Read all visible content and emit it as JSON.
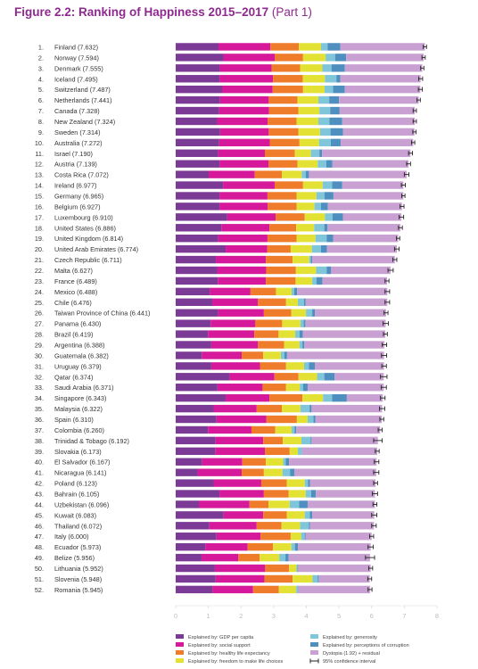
{
  "title": "Figure 2.2: Ranking of Happiness 2015–2017",
  "title_part": "(Part 1)",
  "chart_data": {
    "type": "bar",
    "orientation": "horizontal",
    "stacked": true,
    "xlim": [
      0,
      8
    ],
    "x_ticks": [
      "0",
      "1",
      "2",
      "3",
      "4",
      "5",
      "6",
      "7",
      "8"
    ],
    "grid": false,
    "legend_position": "bottom",
    "categories": [
      "Finland (7.632)",
      "Norway (7.594)",
      "Denmark (7.555)",
      "Iceland (7.495)",
      "Switzerland (7.487)",
      "Netherlands (7.441)",
      "Canada (7.328)",
      "New Zealand (7.324)",
      "Sweden (7.314)",
      "Australia (7.272)",
      "Israel (7.190)",
      "Austria (7.139)",
      "Costa Rica (7.072)",
      "Ireland (6.977)",
      "Germany (6.965)",
      "Belgium (6.927)",
      "Luxembourg (6.910)",
      "United States (6.886)",
      "United Kingdom (6.814)",
      "United Arab Emirates (6.774)",
      "Czech Republic (6.711)",
      "Malta (6.627)",
      "France (6.489)",
      "Mexico (6.488)",
      "Chile (6.476)",
      "Taiwan Province of China (6.441)",
      "Panama (6.430)",
      "Brazil (6.419)",
      "Argentina (6.388)",
      "Guatemala (6.382)",
      "Uruguay (6.379)",
      "Qatar (6.374)",
      "Saudi Arabia (6.371)",
      "Singapore (6.343)",
      "Malaysia (6.322)",
      "Spain (6.310)",
      "Colombia (6.260)",
      "Trinidad & Tobago (6.192)",
      "Slovakia (6.173)",
      "El Salvador (6.167)",
      "Nicaragua (6.141)",
      "Poland (6.123)",
      "Bahrain (6.105)",
      "Uzbekistan (6.096)",
      "Kuwait (6.083)",
      "Thailand (6.072)",
      "Italy (6.000)",
      "Ecuador (5.973)",
      "Belize (5.956)",
      "Lithuania (5.952)",
      "Slovenia (5.948)",
      "Romania (5.945)"
    ],
    "series": [
      {
        "name": "Explained by: GDP per capita",
        "color": "#7b3a96",
        "values": [
          1.31,
          1.46,
          1.35,
          1.34,
          1.42,
          1.36,
          1.33,
          1.27,
          1.36,
          1.33,
          1.3,
          1.34,
          1.01,
          1.45,
          1.34,
          1.34,
          1.58,
          1.4,
          1.3,
          1.53,
          1.23,
          1.27,
          1.29,
          1.04,
          1.12,
          1.3,
          1.07,
          0.99,
          1.09,
          0.8,
          1.09,
          1.65,
          1.28,
          1.53,
          1.16,
          1.25,
          0.99,
          1.22,
          1.21,
          0.81,
          0.67,
          1.16,
          1.34,
          0.71,
          1.47,
          1.03,
          1.25,
          0.91,
          0.79,
          1.2,
          1.22,
          1.13
        ]
      },
      {
        "name": "Explained by: social support",
        "color": "#d6199b",
        "values": [
          1.59,
          1.58,
          1.59,
          1.64,
          1.55,
          1.49,
          1.53,
          1.55,
          1.49,
          1.55,
          1.43,
          1.5,
          1.41,
          1.58,
          1.47,
          1.48,
          1.48,
          1.47,
          1.51,
          1.27,
          1.53,
          1.5,
          1.47,
          1.25,
          1.4,
          1.4,
          1.37,
          1.42,
          1.43,
          1.22,
          1.49,
          1.37,
          1.38,
          1.34,
          1.32,
          1.53,
          1.33,
          1.46,
          1.52,
          1.23,
          1.35,
          1.46,
          1.36,
          1.55,
          1.21,
          1.45,
          1.35,
          1.29,
          1.13,
          1.54,
          1.5,
          1.24
        ]
      },
      {
        "name": "Explained by: healthy life expectancy",
        "color": "#ef7c2a",
        "values": [
          0.87,
          0.86,
          0.87,
          0.91,
          0.93,
          0.88,
          0.9,
          0.88,
          0.91,
          0.91,
          0.92,
          0.89,
          0.83,
          0.87,
          0.89,
          0.88,
          0.89,
          0.82,
          0.89,
          0.72,
          0.82,
          0.91,
          0.91,
          0.78,
          0.86,
          0.84,
          0.82,
          0.74,
          0.8,
          0.66,
          0.8,
          0.74,
          0.72,
          1.01,
          0.77,
          0.93,
          0.73,
          0.6,
          0.76,
          0.72,
          0.68,
          0.78,
          0.76,
          0.58,
          0.72,
          0.76,
          0.92,
          0.78,
          0.65,
          0.73,
          0.86,
          0.79
        ]
      },
      {
        "name": "Explained by: freedom to make life choices",
        "color": "#e3e234",
        "values": [
          0.68,
          0.69,
          0.68,
          0.68,
          0.66,
          0.64,
          0.64,
          0.67,
          0.66,
          0.6,
          0.49,
          0.62,
          0.61,
          0.6,
          0.61,
          0.55,
          0.62,
          0.55,
          0.58,
          0.65,
          0.51,
          0.62,
          0.51,
          0.48,
          0.36,
          0.45,
          0.56,
          0.51,
          0.47,
          0.54,
          0.55,
          0.57,
          0.42,
          0.63,
          0.57,
          0.33,
          0.5,
          0.57,
          0.25,
          0.53,
          0.57,
          0.55,
          0.52,
          0.65,
          0.55,
          0.57,
          0.32,
          0.56,
          0.6,
          0.23,
          0.61,
          0.53
        ]
      },
      {
        "name": "Explained by: generosity",
        "color": "#7fc6db",
        "values": [
          0.2,
          0.29,
          0.28,
          0.35,
          0.26,
          0.33,
          0.33,
          0.34,
          0.32,
          0.36,
          0.26,
          0.26,
          0.12,
          0.29,
          0.25,
          0.2,
          0.23,
          0.31,
          0.34,
          0.28,
          0.05,
          0.32,
          0.13,
          0.08,
          0.19,
          0.19,
          0.1,
          0.13,
          0.09,
          0.11,
          0.15,
          0.22,
          0.1,
          0.28,
          0.28,
          0.18,
          0.09,
          0.28,
          0.12,
          0.08,
          0.23,
          0.1,
          0.17,
          0.29,
          0.16,
          0.27,
          0.11,
          0.11,
          0.19,
          0.03,
          0.16,
          0.05
        ]
      },
      {
        "name": "Explained by: perceptions of corruption",
        "color": "#4f8fc0",
        "values": [
          0.39,
          0.34,
          0.41,
          0.12,
          0.36,
          0.3,
          0.29,
          0.39,
          0.38,
          0.3,
          0.08,
          0.19,
          0.1,
          0.31,
          0.27,
          0.21,
          0.32,
          0.1,
          0.2,
          0.18,
          0.04,
          0.14,
          0.18,
          0.09,
          0.05,
          0.08,
          0.05,
          0.1,
          0.06,
          0.08,
          0.18,
          0.31,
          0.14,
          0.45,
          0.06,
          0.06,
          0.05,
          0.03,
          0.01,
          0.1,
          0.14,
          0.06,
          0.14,
          0.26,
          0.07,
          0.03,
          0.03,
          0.09,
          0.1,
          0.02,
          0.03,
          0.01
        ]
      },
      {
        "name": "Dystopia (1.92) + residual",
        "color": "#c9a0d2",
        "values": [
          2.59,
          2.37,
          2.37,
          2.46,
          2.31,
          2.44,
          2.3,
          2.22,
          2.19,
          2.22,
          2.71,
          2.33,
          2.99,
          1.87,
          2.14,
          2.27,
          1.79,
          2.23,
          1.99,
          2.14,
          2.53,
          1.82,
          1.98,
          2.76,
          2.5,
          2.18,
          2.46,
          2.53,
          2.45,
          2.97,
          2.12,
          1.51,
          2.33,
          1.1,
          2.16,
          2.03,
          2.57,
          2.03,
          2.3,
          2.68,
          2.5,
          2.01,
          1.81,
          2.06,
          1.9,
          1.96,
          2.02,
          2.23,
          2.49,
          2.22,
          1.56,
          2.2
        ]
      }
    ],
    "confidence_interval": {
      "name": "95% confidence interval",
      "color": "#222222",
      "values": [
        0.05,
        0.05,
        0.05,
        0.06,
        0.06,
        0.05,
        0.05,
        0.05,
        0.05,
        0.05,
        0.06,
        0.06,
        0.07,
        0.06,
        0.05,
        0.06,
        0.07,
        0.06,
        0.05,
        0.07,
        0.06,
        0.08,
        0.06,
        0.07,
        0.07,
        0.06,
        0.08,
        0.06,
        0.07,
        0.08,
        0.07,
        0.1,
        0.08,
        0.07,
        0.08,
        0.06,
        0.06,
        0.13,
        0.06,
        0.07,
        0.08,
        0.06,
        0.08,
        0.06,
        0.08,
        0.07,
        0.06,
        0.08,
        0.14,
        0.06,
        0.06,
        0.06
      ]
    }
  }
}
